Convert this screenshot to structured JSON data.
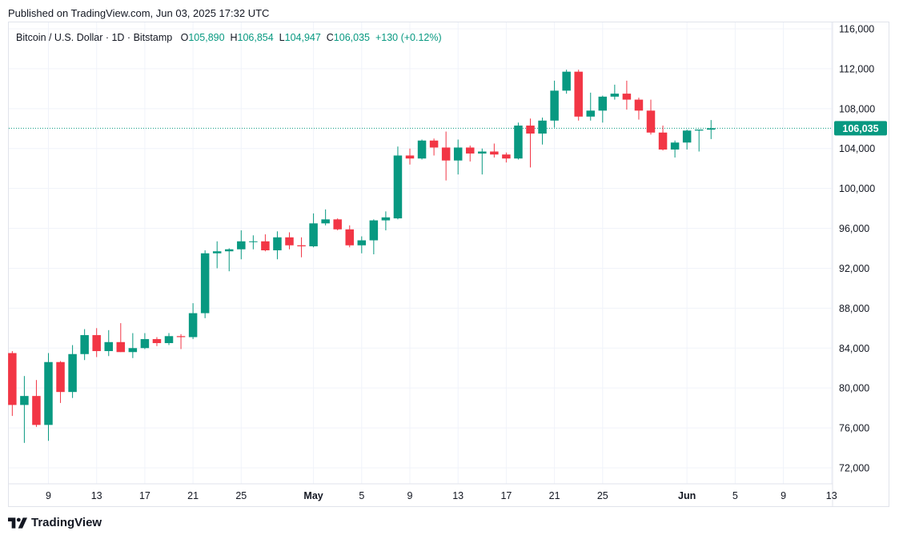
{
  "published": "Published on TradingView.com, Jun 03, 2025 17:32 UTC",
  "legend": {
    "symbol": "Bitcoin / U.S. Dollar · 1D · Bitstamp",
    "o_label": "O",
    "o_value": "105,890",
    "h_label": "H",
    "h_value": "106,854",
    "l_label": "L",
    "l_value": "104,947",
    "c_label": "C",
    "c_value": "106,035",
    "change": "+130 (+0.12%)"
  },
  "brand": "TradingView",
  "colors": {
    "up": "#089981",
    "down": "#f23645",
    "grid": "#f0f3fa",
    "axis_text": "#131722",
    "price_line": "#089981"
  },
  "chart_data": {
    "type": "candlestick",
    "y_ticks": [
      "116,000",
      "112,000",
      "108,000",
      "104,000",
      "100,000",
      "96,000",
      "92,000",
      "88,000",
      "84,000",
      "80,000",
      "76,000",
      "72,000"
    ],
    "y_tick_values": [
      116000,
      112000,
      108000,
      104000,
      100000,
      96000,
      92000,
      88000,
      84000,
      80000,
      76000,
      72000
    ],
    "ylim": [
      70500,
      116800
    ],
    "x_ticks": [
      {
        "label": "9",
        "date": "2025-04-09"
      },
      {
        "label": "13",
        "date": "2025-04-13"
      },
      {
        "label": "17",
        "date": "2025-04-17"
      },
      {
        "label": "21",
        "date": "2025-04-21"
      },
      {
        "label": "25",
        "date": "2025-04-25"
      },
      {
        "label": "May",
        "date": "2025-05-01",
        "bold": true
      },
      {
        "label": "5",
        "date": "2025-05-05"
      },
      {
        "label": "9",
        "date": "2025-05-09"
      },
      {
        "label": "13",
        "date": "2025-05-13"
      },
      {
        "label": "17",
        "date": "2025-05-17"
      },
      {
        "label": "21",
        "date": "2025-05-21"
      },
      {
        "label": "25",
        "date": "2025-05-25"
      },
      {
        "label": "Jun",
        "date": "2025-06-01",
        "bold": true
      },
      {
        "label": "5",
        "date": "2025-06-05"
      },
      {
        "label": "9",
        "date": "2025-06-09"
      },
      {
        "label": "13",
        "date": "2025-06-13"
      }
    ],
    "last_price": 106035,
    "last_price_label": "106,035",
    "candles": [
      {
        "date": "2025-04-06",
        "o": 83500,
        "h": 83700,
        "l": 77200,
        "c": 78300
      },
      {
        "date": "2025-04-07",
        "o": 78300,
        "h": 81200,
        "l": 74500,
        "c": 79200
      },
      {
        "date": "2025-04-08",
        "o": 79200,
        "h": 80800,
        "l": 76100,
        "c": 76300
      },
      {
        "date": "2025-04-09",
        "o": 76300,
        "h": 83500,
        "l": 74700,
        "c": 82600
      },
      {
        "date": "2025-04-10",
        "o": 82600,
        "h": 82700,
        "l": 78500,
        "c": 79600
      },
      {
        "date": "2025-04-11",
        "o": 79600,
        "h": 84300,
        "l": 79000,
        "c": 83400
      },
      {
        "date": "2025-04-12",
        "o": 83400,
        "h": 85900,
        "l": 82800,
        "c": 85300
      },
      {
        "date": "2025-04-13",
        "o": 85300,
        "h": 86000,
        "l": 83100,
        "c": 83700
      },
      {
        "date": "2025-04-14",
        "o": 83700,
        "h": 85800,
        "l": 83200,
        "c": 84600
      },
      {
        "date": "2025-04-15",
        "o": 84600,
        "h": 86500,
        "l": 83600,
        "c": 83600
      },
      {
        "date": "2025-04-16",
        "o": 83600,
        "h": 85500,
        "l": 83000,
        "c": 84000
      },
      {
        "date": "2025-04-17",
        "o": 84000,
        "h": 85500,
        "l": 83900,
        "c": 84900
      },
      {
        "date": "2025-04-18",
        "o": 84900,
        "h": 85100,
        "l": 84200,
        "c": 84500
      },
      {
        "date": "2025-04-19",
        "o": 84500,
        "h": 85500,
        "l": 84300,
        "c": 85200
      },
      {
        "date": "2025-04-20",
        "o": 85200,
        "h": 85400,
        "l": 83900,
        "c": 85100
      },
      {
        "date": "2025-04-21",
        "o": 85100,
        "h": 88500,
        "l": 84900,
        "c": 87500
      },
      {
        "date": "2025-04-22",
        "o": 87500,
        "h": 93800,
        "l": 87000,
        "c": 93500
      },
      {
        "date": "2025-04-23",
        "o": 93500,
        "h": 94700,
        "l": 92000,
        "c": 93700
      },
      {
        "date": "2025-04-24",
        "o": 93700,
        "h": 94000,
        "l": 91700,
        "c": 93900
      },
      {
        "date": "2025-04-25",
        "o": 93900,
        "h": 95800,
        "l": 92900,
        "c": 94700
      },
      {
        "date": "2025-04-26",
        "o": 94700,
        "h": 95300,
        "l": 93900,
        "c": 94700
      },
      {
        "date": "2025-04-27",
        "o": 94700,
        "h": 95400,
        "l": 93700,
        "c": 93800
      },
      {
        "date": "2025-04-28",
        "o": 93800,
        "h": 95700,
        "l": 92900,
        "c": 95100
      },
      {
        "date": "2025-04-29",
        "o": 95100,
        "h": 95600,
        "l": 93900,
        "c": 94300
      },
      {
        "date": "2025-04-30",
        "o": 94300,
        "h": 95100,
        "l": 93100,
        "c": 94200
      },
      {
        "date": "2025-05-01",
        "o": 94200,
        "h": 97500,
        "l": 94100,
        "c": 96500
      },
      {
        "date": "2025-05-02",
        "o": 96500,
        "h": 97900,
        "l": 96300,
        "c": 96900
      },
      {
        "date": "2025-05-03",
        "o": 96900,
        "h": 97000,
        "l": 95800,
        "c": 95900
      },
      {
        "date": "2025-05-04",
        "o": 95900,
        "h": 96300,
        "l": 94100,
        "c": 94300
      },
      {
        "date": "2025-05-05",
        "o": 94300,
        "h": 95200,
        "l": 93500,
        "c": 94800
      },
      {
        "date": "2025-05-06",
        "o": 94800,
        "h": 96900,
        "l": 93400,
        "c": 96800
      },
      {
        "date": "2025-05-07",
        "o": 96800,
        "h": 97700,
        "l": 95800,
        "c": 97100
      },
      {
        "date": "2025-05-08",
        "o": 97000,
        "h": 104200,
        "l": 96900,
        "c": 103300
      },
      {
        "date": "2025-05-09",
        "o": 103300,
        "h": 104000,
        "l": 102400,
        "c": 103000
      },
      {
        "date": "2025-05-10",
        "o": 103000,
        "h": 104900,
        "l": 102900,
        "c": 104800
      },
      {
        "date": "2025-05-11",
        "o": 104800,
        "h": 105000,
        "l": 103300,
        "c": 104100
      },
      {
        "date": "2025-05-12",
        "o": 104100,
        "h": 105700,
        "l": 100800,
        "c": 102800
      },
      {
        "date": "2025-05-13",
        "o": 102800,
        "h": 104900,
        "l": 101400,
        "c": 104100
      },
      {
        "date": "2025-05-14",
        "o": 104100,
        "h": 104300,
        "l": 102700,
        "c": 103500
      },
      {
        "date": "2025-05-15",
        "o": 103500,
        "h": 104000,
        "l": 101400,
        "c": 103700
      },
      {
        "date": "2025-05-16",
        "o": 103700,
        "h": 104500,
        "l": 103100,
        "c": 103400
      },
      {
        "date": "2025-05-17",
        "o": 103400,
        "h": 103600,
        "l": 102600,
        "c": 103000
      },
      {
        "date": "2025-05-18",
        "o": 103000,
        "h": 106600,
        "l": 102900,
        "c": 106300
      },
      {
        "date": "2025-05-19",
        "o": 106300,
        "h": 107000,
        "l": 102100,
        "c": 105500
      },
      {
        "date": "2025-05-20",
        "o": 105500,
        "h": 107100,
        "l": 104400,
        "c": 106800
      },
      {
        "date": "2025-05-21",
        "o": 106800,
        "h": 110800,
        "l": 106100,
        "c": 109800
      },
      {
        "date": "2025-05-22",
        "o": 109800,
        "h": 111900,
        "l": 109500,
        "c": 111700
      },
      {
        "date": "2025-05-23",
        "o": 111700,
        "h": 111900,
        "l": 106800,
        "c": 107200
      },
      {
        "date": "2025-05-24",
        "o": 107200,
        "h": 109600,
        "l": 106800,
        "c": 107800
      },
      {
        "date": "2025-05-25",
        "o": 107800,
        "h": 109300,
        "l": 106600,
        "c": 109200
      },
      {
        "date": "2025-05-26",
        "o": 109200,
        "h": 110400,
        "l": 108900,
        "c": 109500
      },
      {
        "date": "2025-05-27",
        "o": 109500,
        "h": 110800,
        "l": 107900,
        "c": 108900
      },
      {
        "date": "2025-05-28",
        "o": 108900,
        "h": 109100,
        "l": 106900,
        "c": 107800
      },
      {
        "date": "2025-05-29",
        "o": 107800,
        "h": 108900,
        "l": 105400,
        "c": 105600
      },
      {
        "date": "2025-05-30",
        "o": 105600,
        "h": 106300,
        "l": 103800,
        "c": 103900
      },
      {
        "date": "2025-05-31",
        "o": 103900,
        "h": 104800,
        "l": 103100,
        "c": 104600
      },
      {
        "date": "2025-06-01",
        "o": 104600,
        "h": 105900,
        "l": 103900,
        "c": 105800
      },
      {
        "date": "2025-06-02",
        "o": 105800,
        "h": 105900,
        "l": 103700,
        "c": 105900
      },
      {
        "date": "2025-06-03",
        "o": 105890,
        "h": 106854,
        "l": 104947,
        "c": 106035
      }
    ]
  }
}
